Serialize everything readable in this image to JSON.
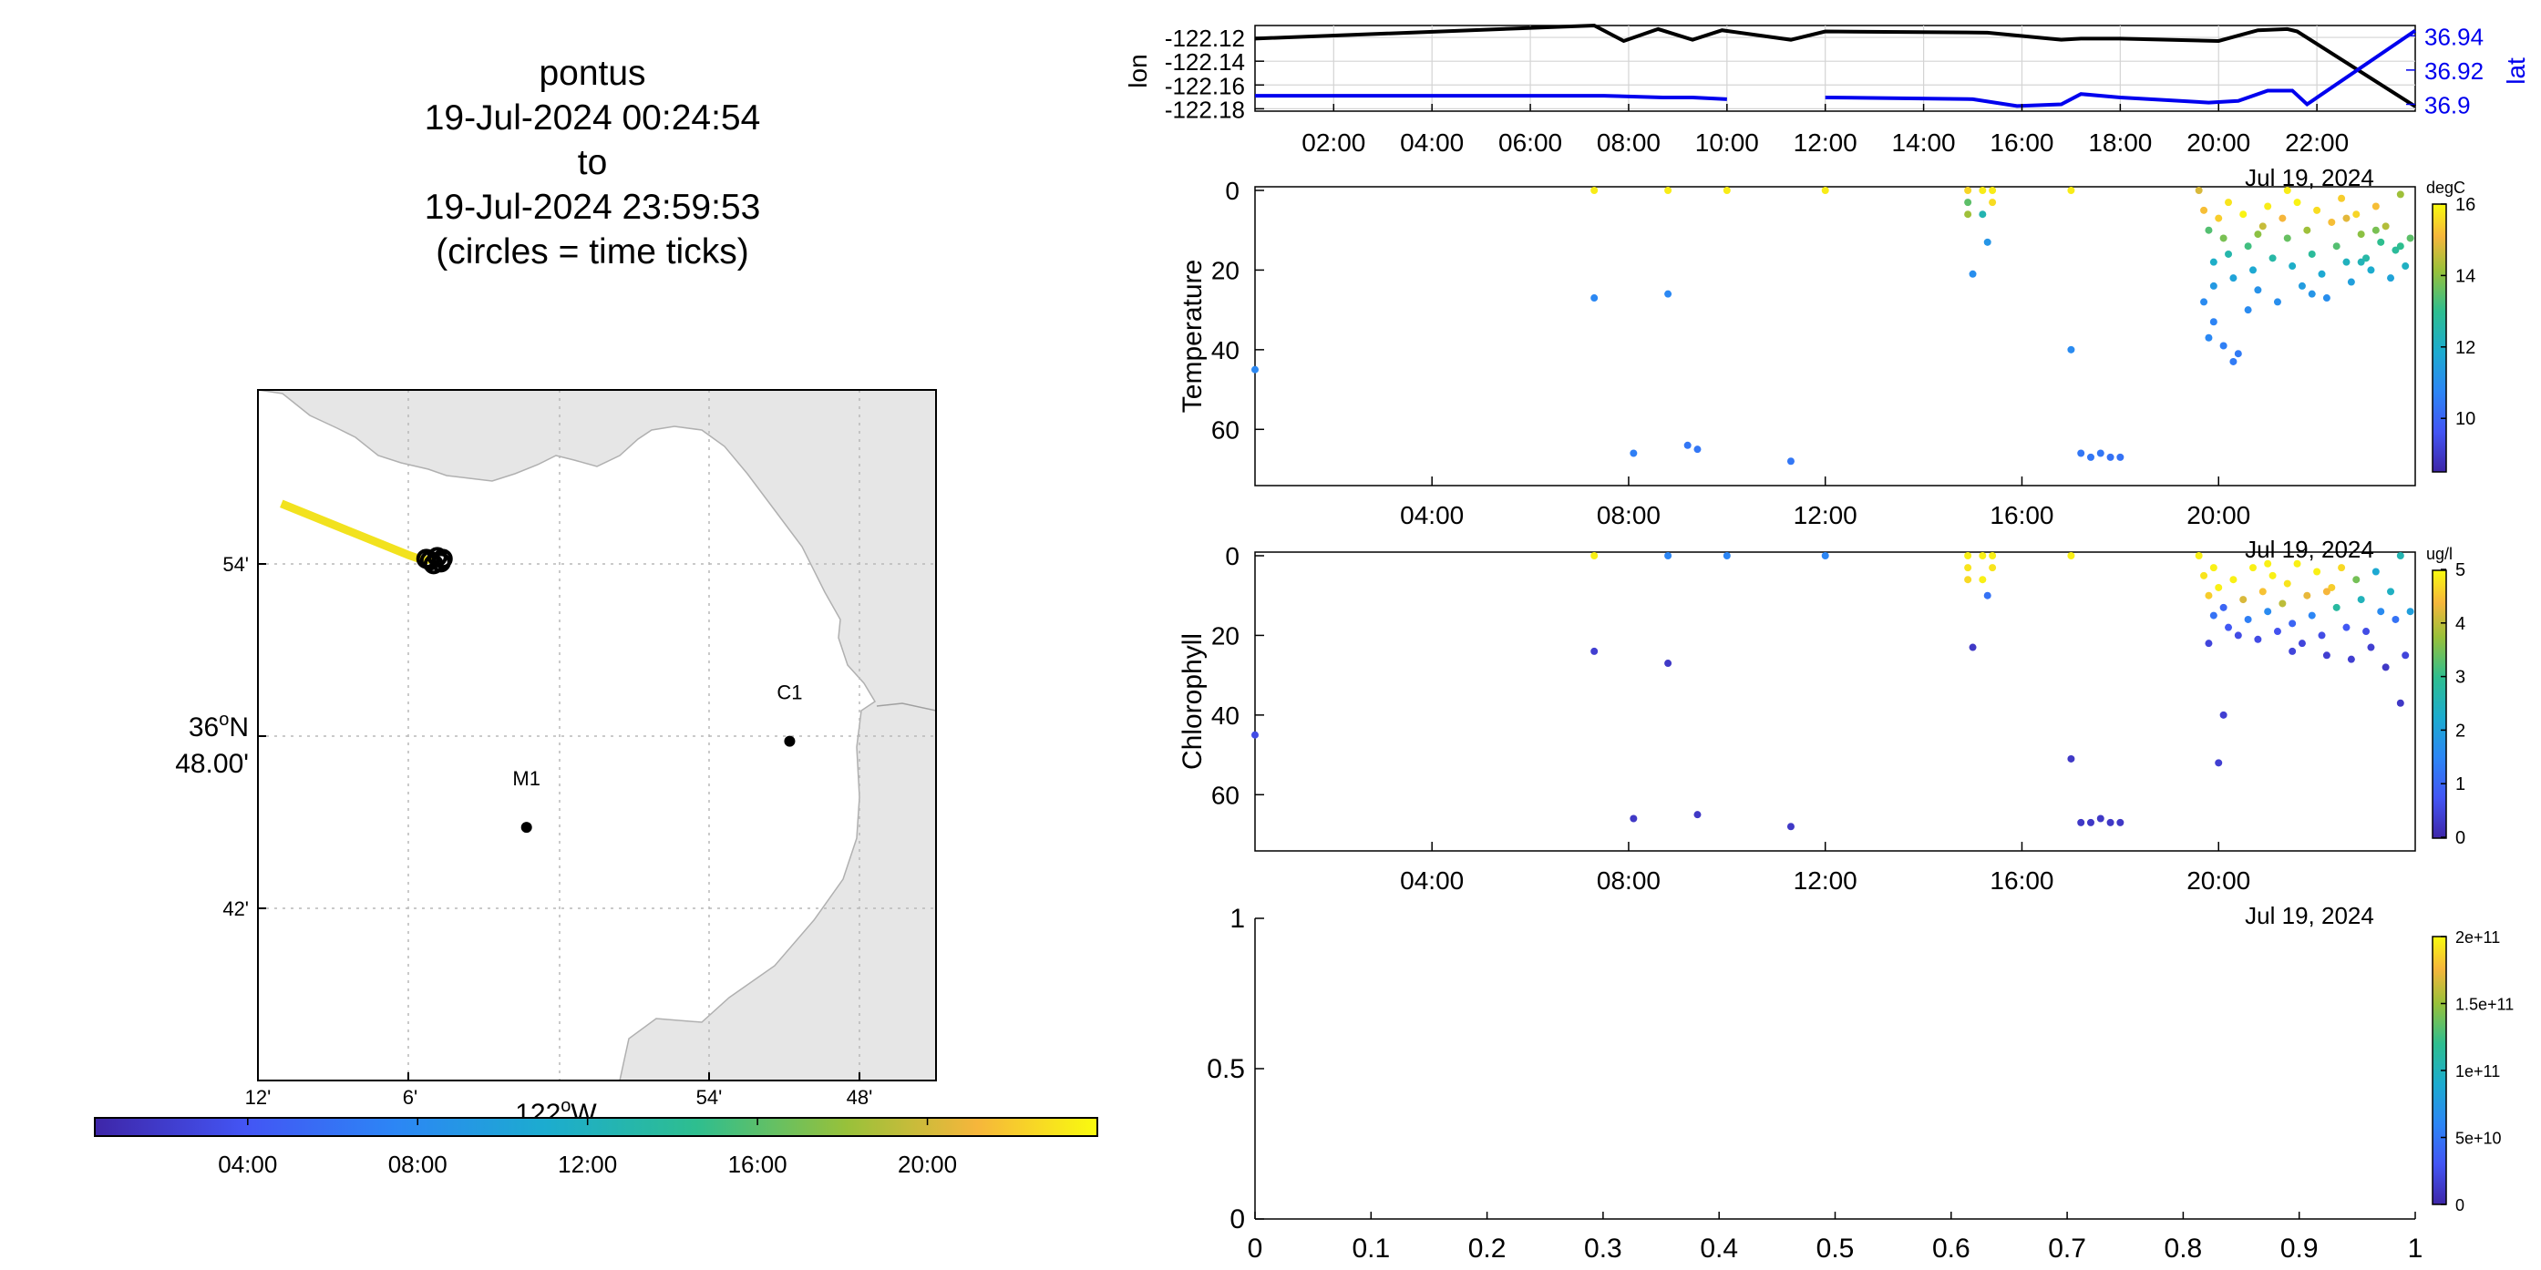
{
  "title": {
    "lines": [
      "pontus",
      "19-Jul-2024 00:24:54",
      "to",
      "19-Jul-2024 23:59:53",
      "(circles = time ticks)"
    ]
  },
  "map": {
    "lat_ticks": [
      "54'",
      "36°N 48.00'",
      "42'"
    ],
    "lat_tick_main_deg": "36",
    "lat_tick_main_sup": "o",
    "lat_tick_main_suffix": "N",
    "lat_tick_main_min": "48.00'",
    "lon_ticks": [
      "12'",
      "6'",
      "54'",
      "48'"
    ],
    "lon_label_deg": "122",
    "lon_label_sup": "o",
    "lon_label_suffix": "W",
    "stations": [
      {
        "name": "C1",
        "lat": 36.797,
        "lon": -121.847
      },
      {
        "name": "M1",
        "lat": 36.747,
        "lon": -122.022
      }
    ],
    "track": [
      [
        -122.185,
        36.935
      ],
      [
        -122.1,
        36.905
      ],
      [
        -122.09,
        36.902
      ],
      [
        -122.085,
        36.903
      ]
    ],
    "time_colorbar_ticks": [
      "04:00",
      "08:00",
      "12:00",
      "16:00",
      "20:00"
    ],
    "land_color": "#e6e6e6"
  },
  "chart_data": [
    {
      "type": "line",
      "ylabel": "lon",
      "ylabel_right": "lat",
      "x_ticks": [
        "02:00",
        "04:00",
        "06:00",
        "08:00",
        "10:00",
        "12:00",
        "14:00",
        "16:00",
        "18:00",
        "20:00",
        "22:00"
      ],
      "x_range_hours": [
        0.4,
        24.0
      ],
      "y_ticks": [
        "-122.12",
        "-122.14",
        "-122.16",
        "-122.18"
      ],
      "y_ticks_right": [
        "36.94",
        "36.92",
        "36.9"
      ],
      "date_label": "Jul 19, 2024",
      "grid": true,
      "series": [
        {
          "axis": "left",
          "color": "#000000",
          "x": [
            0.4,
            7.3,
            7.9,
            8.6,
            9.3,
            9.9,
            11.3,
            12.0,
            15.3,
            16.8,
            17.2,
            18.0,
            20.0,
            20.8,
            21.4,
            21.6,
            24.0
          ],
          "y": [
            -122.121,
            -122.11,
            -122.123,
            -122.113,
            -122.122,
            -122.114,
            -122.122,
            -122.115,
            -122.116,
            -122.122,
            -122.121,
            -122.121,
            -122.123,
            -122.114,
            -122.113,
            -122.115,
            -122.178
          ]
        },
        {
          "axis": "right",
          "color": "#0000ee",
          "x": [
            0.4,
            7.5,
            8.7,
            9.3,
            10.0,
            12.0,
            15.0,
            15.9,
            16.8,
            17.2,
            18.0,
            19.8,
            20.4,
            21.0,
            21.5,
            21.8,
            24.0
          ],
          "y": [
            36.905,
            36.905,
            36.904,
            36.904,
            36.903,
            36.904,
            36.903,
            36.899,
            36.9,
            36.906,
            36.904,
            36.901,
            36.902,
            36.908,
            36.908,
            36.9,
            36.943
          ]
        }
      ]
    },
    {
      "type": "scatter",
      "ylabel": "Temperature",
      "unit": "degC",
      "x_ticks": [
        "04:00",
        "08:00",
        "12:00",
        "16:00",
        "20:00"
      ],
      "y_ticks": [
        "0",
        "20",
        "40",
        "60"
      ],
      "ylim": [
        0,
        70
      ],
      "y_reversed": true,
      "colorbar_ticks": [
        "16",
        "14",
        "12",
        "10"
      ],
      "color_range": [
        8.5,
        16.0
      ],
      "date_label": "Jul 19, 2024",
      "points": [
        [
          0.4,
          45,
          10.8
        ],
        [
          7.3,
          0,
          15.8
        ],
        [
          7.3,
          27,
          10.8
        ],
        [
          8.1,
          66,
          10.6
        ],
        [
          8.8,
          0,
          15.8
        ],
        [
          8.8,
          26,
          10.8
        ],
        [
          9.2,
          64,
          10.4
        ],
        [
          9.4,
          65,
          10.4
        ],
        [
          10.0,
          0,
          15.8
        ],
        [
          11.3,
          68,
          10.4
        ],
        [
          12.0,
          0,
          15.8
        ],
        [
          14.9,
          0,
          15.5
        ],
        [
          14.9,
          3,
          13.5
        ],
        [
          14.9,
          6,
          14.2
        ],
        [
          15.0,
          21,
          11.0
        ],
        [
          15.2,
          0,
          15.8
        ],
        [
          15.2,
          6,
          12.4
        ],
        [
          15.3,
          13,
          11.2
        ],
        [
          15.4,
          0,
          15.8
        ],
        [
          15.4,
          3,
          15.6
        ],
        [
          17.0,
          0,
          15.8
        ],
        [
          17.0,
          40,
          10.9
        ],
        [
          17.2,
          66,
          10.4
        ],
        [
          17.4,
          67,
          10.4
        ],
        [
          17.6,
          66,
          10.4
        ],
        [
          17.8,
          67,
          10.3
        ],
        [
          18.0,
          67,
          10.3
        ],
        [
          19.6,
          0,
          14.8
        ],
        [
          19.7,
          5,
          15.2
        ],
        [
          19.8,
          10,
          13.4
        ],
        [
          19.9,
          18,
          12.0
        ],
        [
          19.7,
          28,
          10.9
        ],
        [
          19.8,
          37,
          10.8
        ],
        [
          19.9,
          33,
          10.7
        ],
        [
          20.0,
          7,
          15.4
        ],
        [
          20.1,
          12,
          13.8
        ],
        [
          20.2,
          16,
          12.5
        ],
        [
          20.3,
          22,
          11.6
        ],
        [
          20.1,
          39,
          10.6
        ],
        [
          20.3,
          43,
          10.5
        ],
        [
          20.4,
          41,
          10.5
        ],
        [
          20.5,
          6,
          15.9
        ],
        [
          20.6,
          14,
          13.2
        ],
        [
          20.7,
          20,
          11.8
        ],
        [
          20.8,
          25,
          11.1
        ],
        [
          20.6,
          30,
          10.9
        ],
        [
          20.9,
          9,
          14.6
        ],
        [
          21.0,
          4,
          15.8
        ],
        [
          21.1,
          17,
          12.6
        ],
        [
          21.2,
          28,
          11.0
        ],
        [
          21.3,
          7,
          15.1
        ],
        [
          21.4,
          12,
          13.6
        ],
        [
          21.5,
          19,
          12.0
        ],
        [
          21.6,
          3,
          15.9
        ],
        [
          21.7,
          24,
          11.4
        ],
        [
          21.8,
          10,
          14.2
        ],
        [
          21.9,
          16,
          12.8
        ],
        [
          22.0,
          5,
          15.6
        ],
        [
          22.1,
          21,
          11.8
        ],
        [
          22.2,
          27,
          11.0
        ],
        [
          22.3,
          8,
          15.2
        ],
        [
          22.4,
          14,
          13.4
        ],
        [
          22.5,
          2,
          15.4
        ],
        [
          22.6,
          18,
          12.2
        ],
        [
          22.7,
          23,
          11.5
        ],
        [
          22.8,
          6,
          15.5
        ],
        [
          22.9,
          11,
          14.0
        ],
        [
          23.0,
          17,
          12.6
        ],
        [
          23.1,
          20,
          11.9
        ],
        [
          23.2,
          4,
          15.2
        ],
        [
          23.3,
          13,
          13.0
        ],
        [
          23.4,
          9,
          14.4
        ],
        [
          23.5,
          22,
          11.6
        ],
        [
          23.6,
          15,
          12.8
        ],
        [
          23.7,
          1,
          14.2
        ],
        [
          23.8,
          19,
          12.1
        ],
        [
          23.9,
          12,
          13.5
        ],
        [
          20.2,
          3,
          15.7
        ],
        [
          21.4,
          0,
          15.8
        ],
        [
          22.6,
          7,
          14.9
        ],
        [
          23.2,
          10,
          13.8
        ],
        [
          19.9,
          24,
          11.3
        ],
        [
          20.8,
          11,
          14.0
        ],
        [
          21.9,
          26,
          11.2
        ],
        [
          22.9,
          18,
          12.3
        ],
        [
          23.7,
          14,
          13.0
        ]
      ]
    },
    {
      "type": "scatter",
      "ylabel": "Chlorophyll",
      "unit": "ug/l",
      "x_ticks": [
        "04:00",
        "08:00",
        "12:00",
        "16:00",
        "20:00"
      ],
      "y_ticks": [
        "0",
        "20",
        "40",
        "60"
      ],
      "ylim": [
        0,
        70
      ],
      "y_reversed": true,
      "colorbar_ticks": [
        "5",
        "4",
        "3",
        "2",
        "1",
        "0"
      ],
      "color_range": [
        0,
        5
      ],
      "date_label": "Jul 19, 2024",
      "points": [
        [
          0.4,
          45,
          0.6
        ],
        [
          7.3,
          0,
          4.9
        ],
        [
          7.3,
          24,
          0.4
        ],
        [
          8.1,
          66,
          0.3
        ],
        [
          8.8,
          0,
          1.5
        ],
        [
          8.8,
          27,
          0.3
        ],
        [
          9.4,
          65,
          0.3
        ],
        [
          10.0,
          0,
          1.5
        ],
        [
          11.3,
          68,
          0.3
        ],
        [
          12.0,
          0,
          1.5
        ],
        [
          14.9,
          0,
          4.9
        ],
        [
          14.9,
          3,
          4.8
        ],
        [
          14.9,
          6,
          4.7
        ],
        [
          15.0,
          23,
          0.3
        ],
        [
          15.2,
          0,
          4.9
        ],
        [
          15.2,
          6,
          4.9
        ],
        [
          15.3,
          10,
          1.2
        ],
        [
          15.4,
          0,
          4.9
        ],
        [
          15.4,
          3,
          4.8
        ],
        [
          17.0,
          0,
          4.9
        ],
        [
          17.0,
          51,
          0.3
        ],
        [
          17.2,
          67,
          0.3
        ],
        [
          17.4,
          67,
          0.3
        ],
        [
          17.6,
          66,
          0.3
        ],
        [
          17.8,
          67,
          0.3
        ],
        [
          18.0,
          67,
          0.3
        ],
        [
          19.6,
          0,
          4.9
        ],
        [
          19.7,
          5,
          4.8
        ],
        [
          19.8,
          10,
          4.6
        ],
        [
          19.9,
          15,
          1.2
        ],
        [
          20.0,
          8,
          4.9
        ],
        [
          20.1,
          13,
          1.0
        ],
        [
          20.2,
          18,
          0.8
        ],
        [
          20.3,
          6,
          4.9
        ],
        [
          20.4,
          20,
          0.6
        ],
        [
          20.5,
          11,
          4.2
        ],
        [
          20.6,
          16,
          1.4
        ],
        [
          20.7,
          3,
          4.9
        ],
        [
          20.8,
          21,
          0.6
        ],
        [
          20.9,
          9,
          4.5
        ],
        [
          21.0,
          14,
          1.6
        ],
        [
          21.1,
          5,
          4.9
        ],
        [
          21.2,
          19,
          0.7
        ],
        [
          21.3,
          12,
          4.0
        ],
        [
          21.4,
          7,
          4.8
        ],
        [
          21.5,
          17,
          1.0
        ],
        [
          21.6,
          2,
          4.9
        ],
        [
          21.7,
          22,
          0.5
        ],
        [
          21.8,
          10,
          4.3
        ],
        [
          21.9,
          15,
          1.5
        ],
        [
          22.0,
          4,
          4.9
        ],
        [
          22.1,
          20,
          0.6
        ],
        [
          22.2,
          25,
          0.4
        ],
        [
          22.3,
          8,
          4.6
        ],
        [
          22.4,
          13,
          2.8
        ],
        [
          22.5,
          3,
          4.7
        ],
        [
          22.6,
          18,
          0.8
        ],
        [
          22.7,
          26,
          0.4
        ],
        [
          22.8,
          6,
          3.5
        ],
        [
          22.9,
          11,
          2.5
        ],
        [
          23.0,
          19,
          0.6
        ],
        [
          23.1,
          23,
          0.4
        ],
        [
          23.2,
          4,
          2.2
        ],
        [
          23.3,
          14,
          1.6
        ],
        [
          23.4,
          28,
          0.3
        ],
        [
          23.5,
          9,
          2.4
        ],
        [
          23.6,
          16,
          1.2
        ],
        [
          23.7,
          0,
          2.6
        ],
        [
          23.8,
          25,
          0.5
        ],
        [
          23.9,
          14,
          2.0
        ],
        [
          23.7,
          37,
          0.3
        ],
        [
          20.1,
          40,
          0.4
        ],
        [
          20.0,
          52,
          0.4
        ],
        [
          19.8,
          22,
          0.5
        ],
        [
          21.5,
          24,
          0.5
        ],
        [
          22.2,
          9,
          4.4
        ],
        [
          19.9,
          3,
          4.9
        ],
        [
          21.0,
          2,
          4.9
        ]
      ]
    },
    {
      "type": "scatter",
      "x_ticks": [
        "0",
        "0.1",
        "0.2",
        "0.3",
        "0.4",
        "0.5",
        "0.6",
        "0.7",
        "0.8",
        "0.9",
        "1"
      ],
      "y_ticks": [
        "1",
        "0.5",
        "0"
      ],
      "xlim": [
        0,
        1
      ],
      "ylim": [
        0,
        1
      ],
      "colorbar_ticks": [
        "2e+11",
        "1.5e+11",
        "1e+11",
        "5e+10",
        "0"
      ],
      "date_label": "Jul 19, 2024",
      "points": []
    }
  ]
}
